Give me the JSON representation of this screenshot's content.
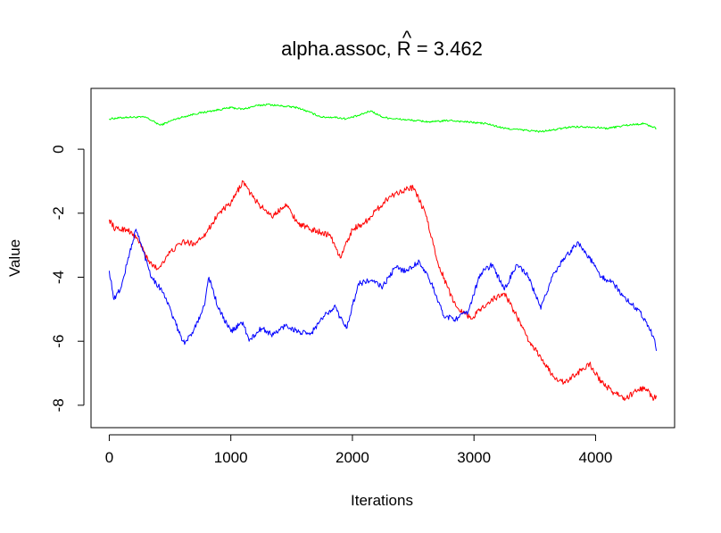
{
  "chart_data": {
    "type": "line",
    "title": "alpha.assoc, R̂ = 3.462",
    "title_parts": {
      "prefix": "alpha.assoc, ",
      "symbol": "R",
      "hat": "^",
      "suffix": " = 3.462"
    },
    "xlabel": "Iterations",
    "ylabel": "Value",
    "xlim": [
      -150,
      4650
    ],
    "ylim": [
      -8.7,
      1.9
    ],
    "xticks": [
      0,
      1000,
      2000,
      3000,
      4000
    ],
    "yticks": [
      0,
      -2,
      -4,
      -6,
      -8
    ],
    "xtick_labels": [
      "0",
      "1000",
      "2000",
      "3000",
      "4000"
    ],
    "ytick_labels": [
      "0",
      "-2",
      "-4",
      "-6",
      "-8"
    ],
    "grid": false,
    "legend": "none",
    "series": [
      {
        "color": "#00ff00",
        "x": [
          0,
          150,
          300,
          420,
          550,
          700,
          850,
          1000,
          1100,
          1200,
          1300,
          1420,
          1550,
          1650,
          1750,
          1850,
          1950,
          2050,
          2150,
          2250,
          2350,
          2500,
          2650,
          2800,
          2950,
          3100,
          3250,
          3400,
          3550,
          3650,
          3800,
          3950,
          4100,
          4250,
          4400,
          4500
        ],
        "y": [
          0.95,
          1.0,
          1.0,
          0.75,
          0.95,
          1.1,
          1.2,
          1.3,
          1.25,
          1.35,
          1.4,
          1.35,
          1.3,
          1.15,
          1.0,
          1.0,
          0.95,
          1.05,
          1.2,
          1.0,
          0.95,
          0.9,
          0.85,
          0.9,
          0.85,
          0.8,
          0.65,
          0.6,
          0.55,
          0.6,
          0.7,
          0.7,
          0.65,
          0.75,
          0.8,
          0.65
        ]
      },
      {
        "color": "#ff0000",
        "x": [
          0,
          50,
          150,
          250,
          320,
          400,
          480,
          600,
          700,
          800,
          900,
          1000,
          1100,
          1180,
          1250,
          1350,
          1450,
          1550,
          1650,
          1750,
          1820,
          1900,
          2000,
          2100,
          2200,
          2300,
          2400,
          2500,
          2600,
          2700,
          2780,
          2850,
          2920,
          2980,
          3050,
          3150,
          3250,
          3350,
          3450,
          3550,
          3650,
          3750,
          3850,
          3950,
          4050,
          4150,
          4250,
          4350,
          4420,
          4480,
          4500
        ],
        "y": [
          -2.2,
          -2.5,
          -2.5,
          -2.9,
          -3.5,
          -3.75,
          -3.3,
          -2.9,
          -2.95,
          -2.6,
          -2.0,
          -1.7,
          -1.0,
          -1.5,
          -1.8,
          -2.1,
          -1.7,
          -2.3,
          -2.5,
          -2.6,
          -2.7,
          -3.4,
          -2.5,
          -2.3,
          -1.9,
          -1.5,
          -1.3,
          -1.2,
          -2.0,
          -3.5,
          -4.3,
          -4.9,
          -5.1,
          -5.3,
          -5.0,
          -4.7,
          -4.5,
          -5.2,
          -6.0,
          -6.5,
          -7.1,
          -7.3,
          -7.0,
          -6.7,
          -7.3,
          -7.6,
          -7.8,
          -7.5,
          -7.5,
          -7.8,
          -7.7
        ]
      },
      {
        "color": "#0000ff",
        "x": [
          0,
          40,
          100,
          150,
          220,
          280,
          350,
          450,
          550,
          620,
          700,
          780,
          820,
          900,
          1000,
          1100,
          1150,
          1250,
          1350,
          1450,
          1550,
          1650,
          1750,
          1850,
          1950,
          2050,
          2150,
          2250,
          2350,
          2450,
          2550,
          2650,
          2750,
          2850,
          2950,
          3050,
          3150,
          3250,
          3350,
          3450,
          3550,
          3650,
          3750,
          3850,
          3950,
          4050,
          4150,
          4250,
          4350,
          4420,
          4480,
          4500
        ],
        "y": [
          -3.8,
          -4.7,
          -4.3,
          -3.5,
          -2.5,
          -3.2,
          -4.0,
          -4.5,
          -5.5,
          -6.1,
          -5.6,
          -4.9,
          -4.0,
          -5.0,
          -5.7,
          -5.4,
          -6.0,
          -5.6,
          -5.8,
          -5.5,
          -5.7,
          -5.8,
          -5.3,
          -4.9,
          -5.6,
          -4.2,
          -4.1,
          -4.3,
          -3.7,
          -3.8,
          -3.5,
          -4.2,
          -5.2,
          -5.3,
          -5.1,
          -3.9,
          -3.6,
          -4.4,
          -3.6,
          -4.0,
          -5.0,
          -3.9,
          -3.4,
          -2.9,
          -3.4,
          -4.0,
          -4.2,
          -4.7,
          -5.0,
          -5.4,
          -5.9,
          -6.3
        ]
      }
    ]
  }
}
